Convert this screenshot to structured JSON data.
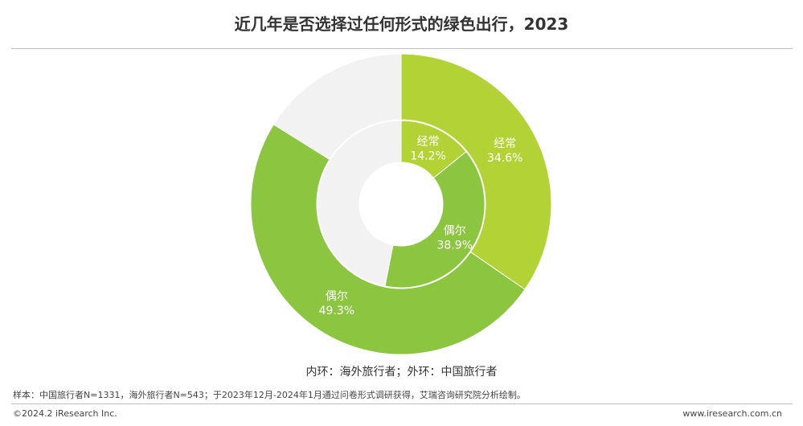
{
  "chart_data": {
    "type": "pie",
    "title": "近几年是否选择过任何形式的绿色出行，2023",
    "series": [
      {
        "name": "外环：中国旅行者",
        "ring": "outer",
        "slices": [
          {
            "label": "经常",
            "value": 34.6,
            "display": "34.6%",
            "color": "#b2d235"
          },
          {
            "label": "偶尔",
            "value": 49.3,
            "display": "49.3%",
            "color": "#8cc540"
          },
          {
            "label": "",
            "value": 16.1,
            "display": "",
            "color": "#f2f2f2"
          }
        ]
      },
      {
        "name": "内环：海外旅行者",
        "ring": "inner",
        "slices": [
          {
            "label": "经常",
            "value": 14.2,
            "display": "14.2%",
            "color": "#b2d235"
          },
          {
            "label": "偶尔",
            "value": 38.9,
            "display": "38.9%",
            "color": "#8cc540"
          },
          {
            "label": "",
            "value": 46.9,
            "display": "",
            "color": "#f2f2f2"
          }
        ]
      }
    ],
    "legend_text": "内环：海外旅行者；外环：中国旅行者"
  },
  "note": "样本：中国旅行者N=1331，海外旅行者N=543；于2023年12月-2024年1月通过问卷形式调研获得，艾瑞咨询研究院分析绘制。",
  "footer": {
    "copyright": "©2024.2 iResearch Inc.",
    "website": "www.iresearch.com.cn"
  }
}
